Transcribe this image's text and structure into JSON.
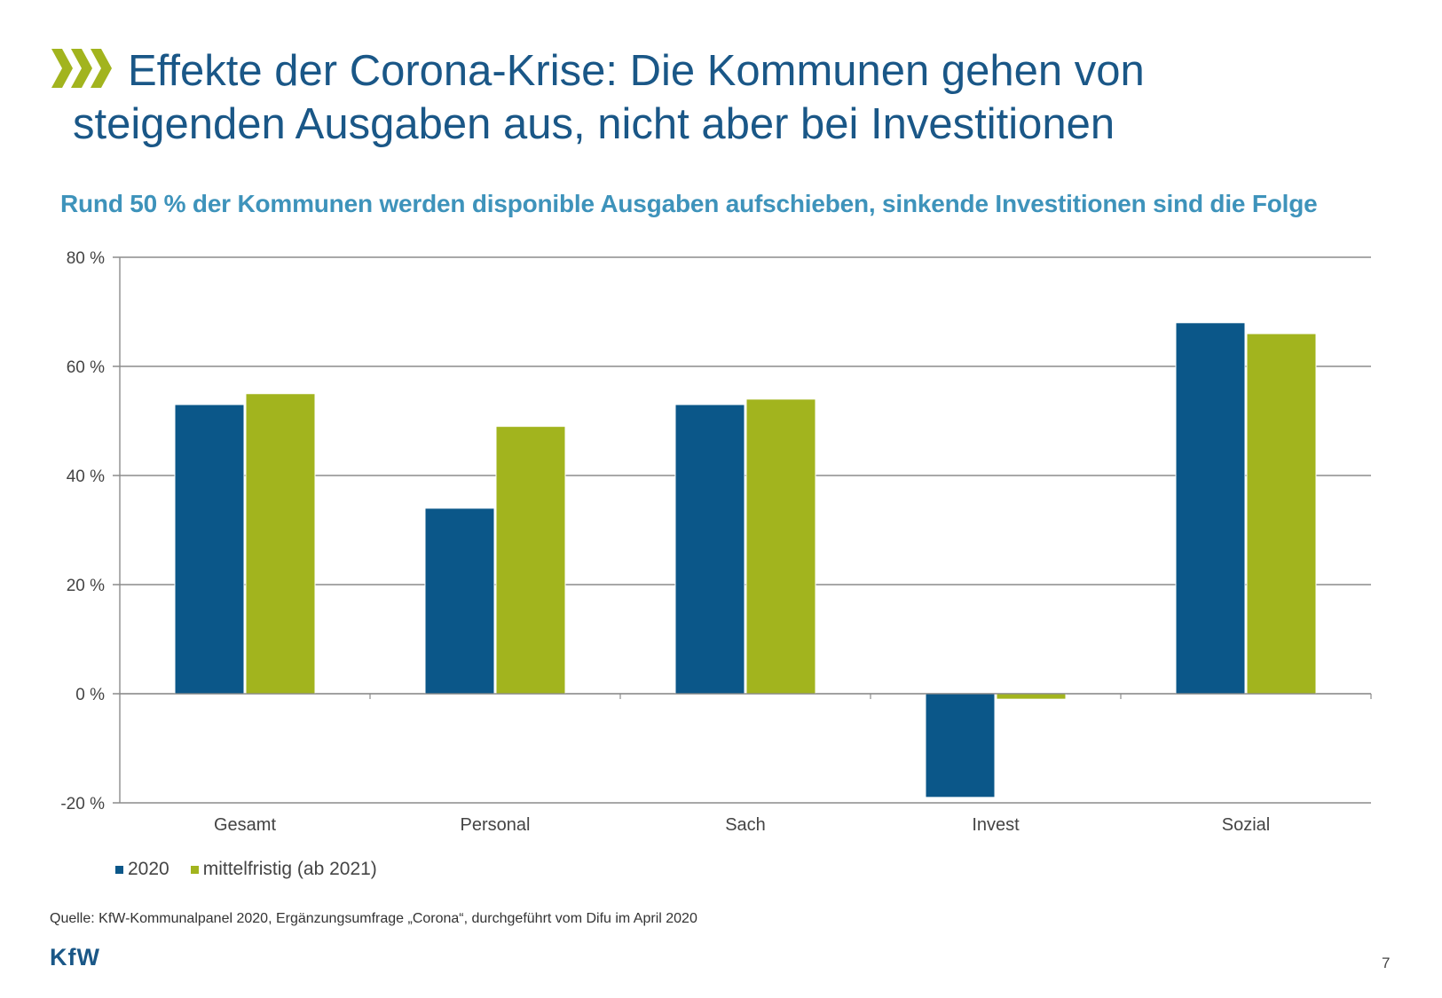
{
  "slide": {
    "title_line1": "Effekte der Corona-Krise: Die Kommunen gehen von",
    "title_line2": "steigenden Ausgaben aus, nicht aber bei Investitionen",
    "subtitle": "Rund 50 % der Kommunen werden disponible Ausgaben aufschieben, sinkende Investitionen sind die Folge",
    "source": "Quelle: KfW-Kommunalpanel 2020, Ergänzungsumfrage „Corona“, durchgeführt vom Difu im April 2020",
    "logo_text": "KfW",
    "page_number": "7",
    "icons": {
      "title_marker": "triple-chevron-right-icon"
    }
  },
  "colors": {
    "title": "#1a5787",
    "subtitle": "#3e93bb",
    "series_2020": "#0b5789",
    "series_mittel": "#a2b41e",
    "gridline": "#8c8c8c"
  },
  "chart_data": {
    "type": "bar",
    "title": "Rund 50 % der Kommunen werden disponible Ausgaben aufschieben, sinkende Investitionen sind die Folge",
    "xlabel": "",
    "ylabel": "",
    "categories": [
      "Gesamt",
      "Personal",
      "Sach",
      "Invest",
      "Sozial"
    ],
    "series": [
      {
        "name": "2020",
        "values": [
          53,
          34,
          53,
          -19,
          68
        ]
      },
      {
        "name": "mittelfristig (ab 2021)",
        "values": [
          55,
          49,
          54,
          -1,
          66
        ]
      }
    ],
    "ylim": [
      -20,
      80
    ],
    "yticks": [
      -20,
      0,
      20,
      40,
      60,
      80
    ],
    "ytick_labels": [
      "-20 %",
      "0 %",
      "20 %",
      "40 %",
      "60 %",
      "80 %"
    ],
    "grid": true,
    "legend_position": "bottom-left"
  }
}
